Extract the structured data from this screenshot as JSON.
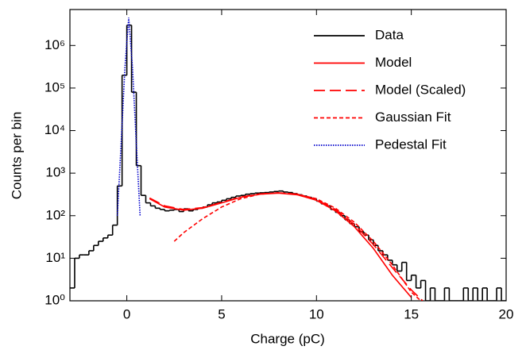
{
  "chart_data": {
    "type": "histogram",
    "x_label": "Charge (pC)",
    "y_label": "Counts per bin",
    "xlim": [
      -3,
      20
    ],
    "ylim": [
      1,
      7000000
    ],
    "log_y": true,
    "legend": "upper right",
    "xticks": [
      0,
      5,
      10,
      15,
      20
    ],
    "yticks": [
      {
        "value": 1,
        "label": "10⁰"
      },
      {
        "value": 10,
        "label": "10¹"
      },
      {
        "value": 100,
        "label": "10²"
      },
      {
        "value": 1000,
        "label": "10³"
      },
      {
        "value": 10000,
        "label": "10⁴"
      },
      {
        "value": 100000,
        "label": "10⁵"
      },
      {
        "value": 1000000,
        "label": "10⁶"
      }
    ],
    "bins": [
      -3,
      -2.75,
      -2.5,
      -2.25,
      -2,
      -1.75,
      -1.5,
      -1.25,
      -1,
      -0.75,
      -0.5,
      -0.25,
      0,
      0.25,
      0.5,
      0.75,
      1,
      1.25,
      1.5,
      1.75,
      2,
      2.25,
      2.5,
      2.75,
      3,
      3.25,
      3.5,
      3.75,
      4,
      4.25,
      4.5,
      4.75,
      5,
      5.25,
      5.5,
      5.75,
      6,
      6.25,
      6.5,
      6.75,
      7,
      7.25,
      7.5,
      7.75,
      8,
      8.25,
      8.5,
      8.75,
      9,
      9.25,
      9.5,
      9.75,
      10,
      10.25,
      10.5,
      10.75,
      11,
      11.25,
      11.5,
      11.75,
      12,
      12.25,
      12.5,
      12.75,
      13,
      13.25,
      13.5,
      13.75,
      14,
      14.25,
      14.5,
      14.75,
      15,
      15.25,
      15.5,
      15.75,
      16,
      16.25,
      16.5,
      16.75,
      17,
      17.25,
      17.5,
      17.75,
      18,
      18.25,
      18.5,
      18.75,
      19,
      19.25,
      19.5,
      19.75,
      20
    ],
    "series": [
      {
        "name": "Data",
        "color": "#000000",
        "dash": "solid",
        "values": [
          2,
          10,
          12,
          12,
          15,
          20,
          25,
          30,
          35,
          60,
          500,
          200000,
          3000000,
          80000,
          1500,
          300,
          200,
          170,
          150,
          140,
          130,
          135,
          140,
          125,
          145,
          130,
          140,
          150,
          160,
          180,
          200,
          210,
          230,
          250,
          270,
          290,
          300,
          320,
          330,
          340,
          345,
          350,
          360,
          370,
          380,
          360,
          350,
          330,
          310,
          290,
          270,
          250,
          220,
          190,
          170,
          140,
          120,
          100,
          80,
          65,
          55,
          42,
          35,
          27,
          20,
          15,
          12,
          9,
          7,
          5,
          8,
          3,
          4,
          2,
          3,
          1,
          2,
          1,
          1,
          2,
          1,
          1,
          1,
          2,
          1,
          2,
          1,
          2,
          1,
          1,
          2,
          1
        ]
      },
      {
        "name": "Model",
        "color": "#ff0000",
        "dash": "solid",
        "x": [
          1.2,
          2,
          3,
          4,
          5,
          6,
          7,
          8,
          9,
          10,
          11,
          12,
          13,
          14,
          15
        ],
        "values": [
          250,
          160,
          135,
          150,
          200,
          270,
          320,
          340,
          310,
          230,
          130,
          55,
          17,
          4,
          1.2
        ]
      },
      {
        "name": "Model (Scaled)",
        "color": "#ff0000",
        "dash": "long-dash",
        "x": [
          1.2,
          2,
          3,
          4,
          5,
          6,
          7,
          8,
          9,
          10,
          11,
          12,
          13,
          14,
          15,
          15.6
        ],
        "values": [
          260,
          170,
          140,
          155,
          205,
          275,
          325,
          345,
          320,
          240,
          140,
          62,
          21,
          6,
          1.8,
          1
        ]
      },
      {
        "name": "Gaussian Fit",
        "color": "#ff0000",
        "dash": "dash",
        "x": [
          2.5,
          3,
          4,
          5,
          6,
          7,
          8,
          9,
          10,
          11,
          12,
          13,
          14,
          15,
          15.5
        ],
        "values": [
          25,
          40,
          85,
          160,
          250,
          320,
          345,
          320,
          250,
          150,
          70,
          25,
          7,
          1.6,
          1
        ]
      },
      {
        "name": "Pedestal Fit",
        "color": "#0000cc",
        "dash": "dot",
        "x": [
          -0.5,
          -0.3,
          -0.1,
          0.1,
          0.3,
          0.5,
          0.7
        ],
        "values": [
          100,
          5000,
          300000,
          4500000,
          300000,
          5000,
          100
        ]
      }
    ]
  }
}
